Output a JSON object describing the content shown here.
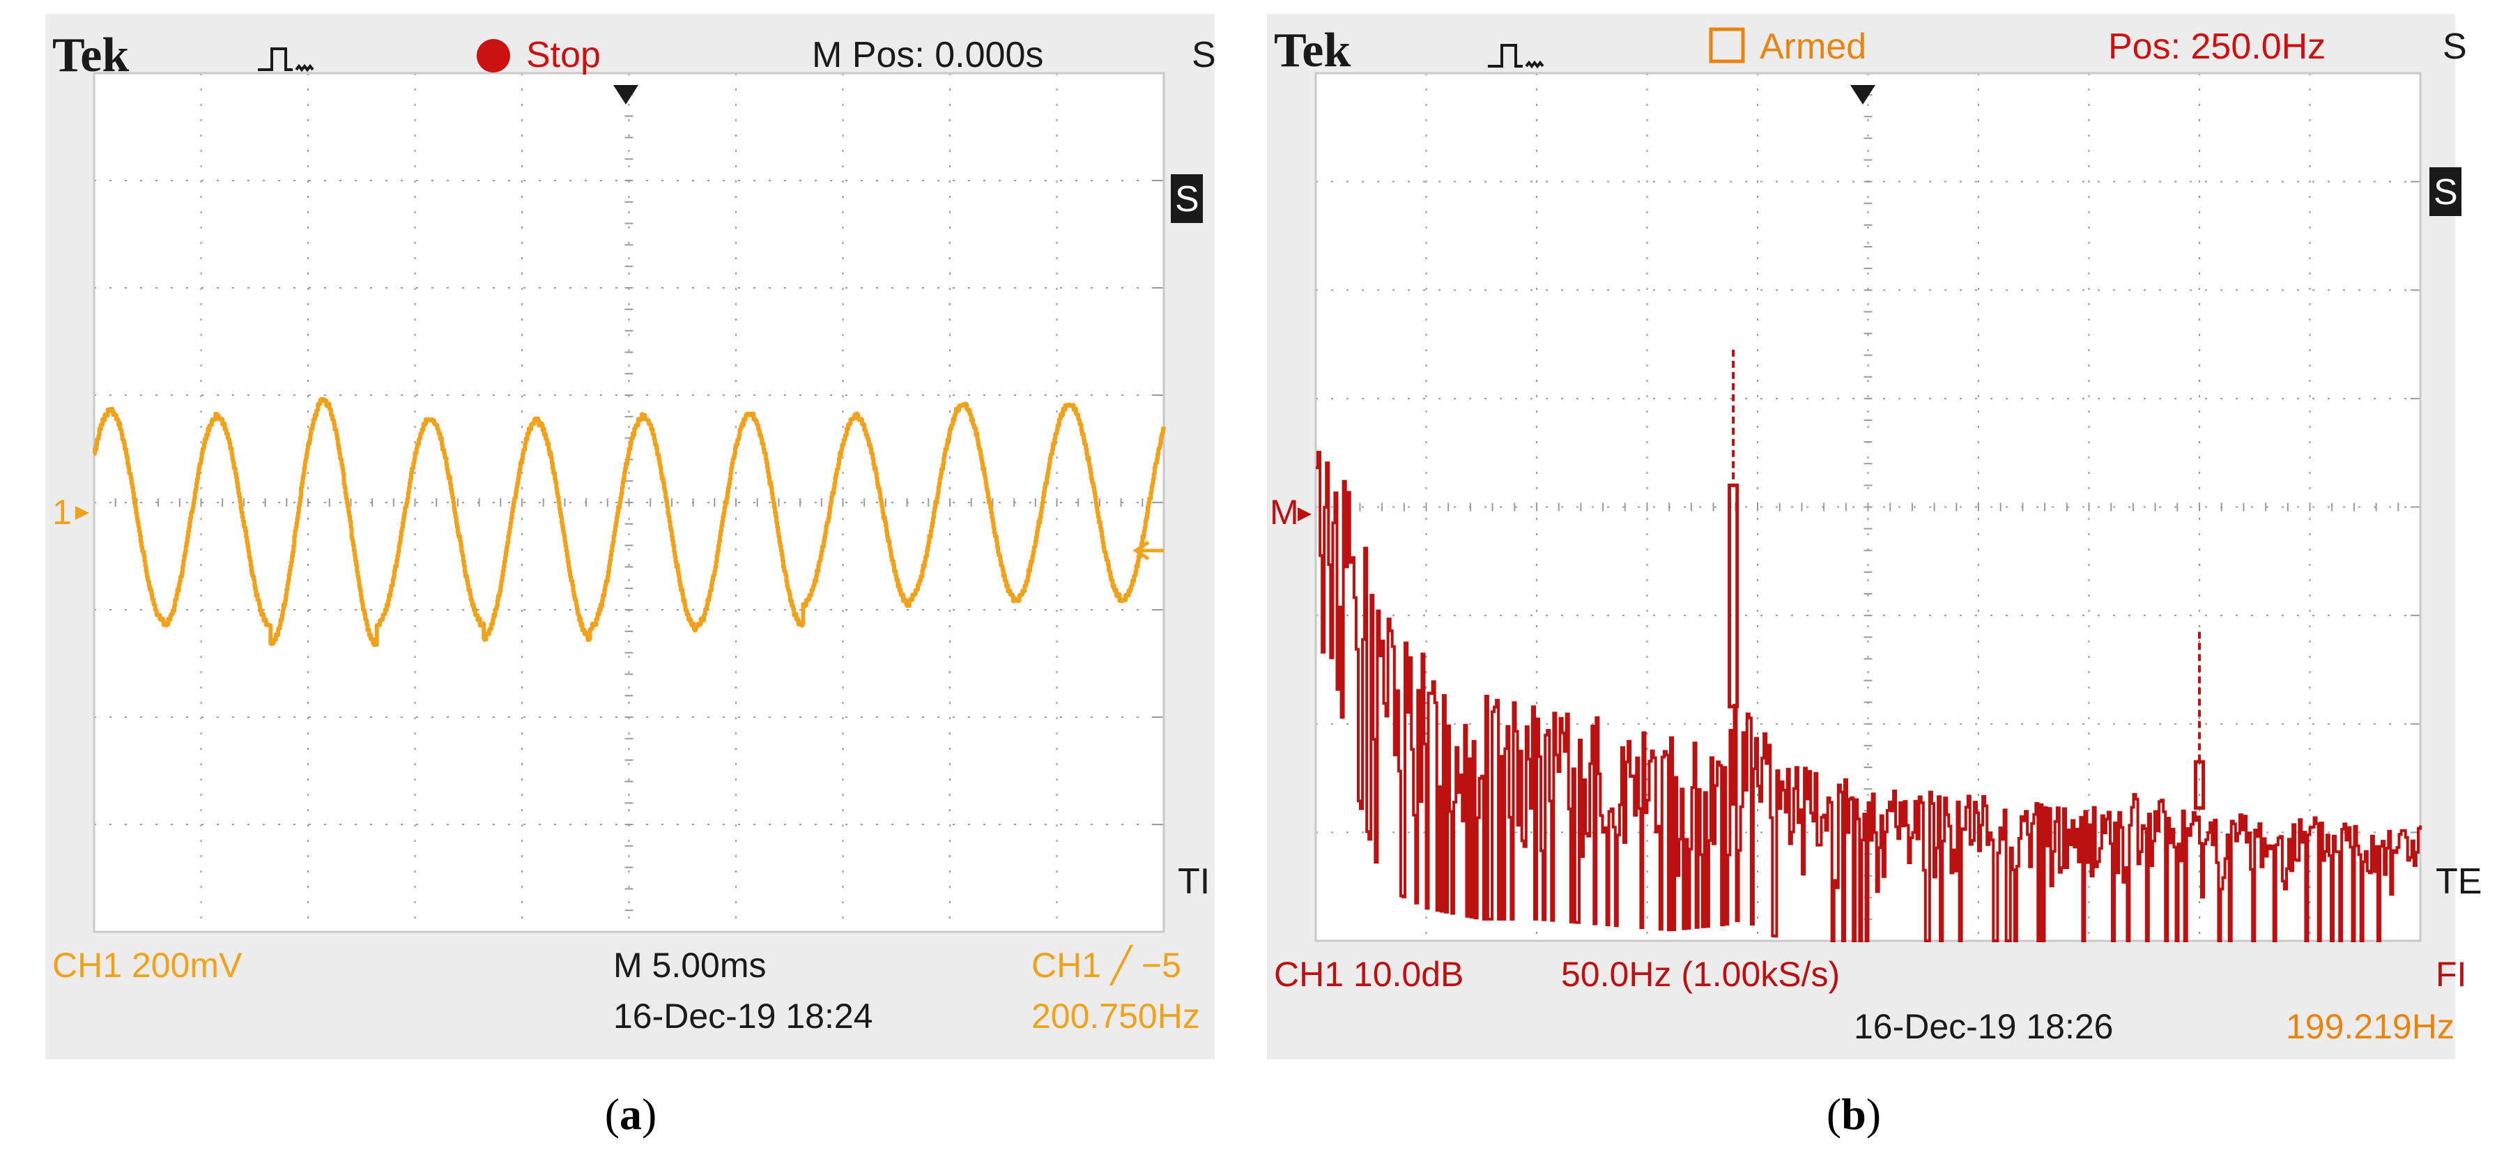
{
  "panels": {
    "a": {
      "brand": "Tek",
      "status_label": "Stop",
      "header_right": "M Pos: 0.000s",
      "edge_right_top": "S",
      "edge_menu_box": "S",
      "edge_right_bottom": "TI",
      "ch_marker": "1",
      "ch_scale": "CH1  200mV",
      "timebase": "M 5.00ms",
      "trigger": "CH1  ╱  −5",
      "datetime": "16-Dec-19 18:24",
      "freq": "200.750Hz",
      "caption_letter": "a",
      "colors": {
        "trace": "#f0a21c",
        "status": "#cc1111",
        "text": "#1a1a1a"
      }
    },
    "b": {
      "brand": "Tek",
      "status_label": "Armed",
      "header_right": "Pos: 250.0Hz",
      "edge_right_top": "S",
      "edge_menu_box": "S",
      "edge_right_bottom": "TE",
      "edge_right_bottom2": "FI",
      "ch_marker": "M",
      "ch_scale": "CH1 10.0dB",
      "span": "50.0Hz (1.00kS/s)",
      "datetime": "16-Dec-19 18:26",
      "freq": "199.219Hz",
      "caption_letter": "b",
      "colors": {
        "trace": "#bb1111",
        "status": "#e6850f",
        "text": "#1a1a1a"
      }
    }
  },
  "chart_data": [
    {
      "type": "line",
      "panel": "a",
      "description_of_signal": "sinusoid",
      "xlim": [
        0,
        10
      ],
      "ylim": [
        -4,
        4
      ],
      "grid": true,
      "period_divisions": 0.996,
      "peak_values": [
        0.85,
        0.8,
        0.95,
        0.78,
        0.76,
        0.8,
        0.82,
        0.8,
        0.91
      ],
      "trough_values": [
        -1.1,
        -1.15,
        -1.32,
        -1.13,
        -1.26,
        -1.17,
        -1.15,
        -0.95,
        -0.9
      ],
      "series": [
        {
          "values_note": "peak/trough amplitude per cycle (divisions from centre line)"
        }
      ]
    },
    {
      "type": "line",
      "panel": "b",
      "xlim": [
        0,
        10
      ],
      "ylim": [
        -4,
        4
      ],
      "grid": true,
      "envelope": {
        "x": [
          0.0,
          0.15,
          0.3,
          0.6,
          1.0,
          1.5,
          2.0,
          2.6,
          3.2,
          3.7,
          3.85,
          3.95,
          4.1,
          4.5,
          5.0,
          5.6,
          6.2,
          6.8,
          7.2,
          7.6,
          7.8,
          8.2,
          8.8,
          9.4,
          10.0
        ],
        "top": [
          0.6,
          0.6,
          0.2,
          -0.8,
          -1.4,
          -1.7,
          -1.85,
          -1.95,
          -2.1,
          -2.0,
          -1.7,
          -1.9,
          -2.1,
          -2.45,
          -2.55,
          -2.6,
          -2.65,
          -2.75,
          -2.7,
          -2.6,
          -2.75,
          -2.8,
          -2.85,
          -2.85,
          -2.9
        ],
        "bottom": [
          -0.9,
          -1.0,
          -2.0,
          -3.1,
          -3.3,
          -3.4,
          -3.4,
          -3.45,
          -3.5,
          -3.45,
          -3.4,
          -3.45,
          -3.55,
          -3.6,
          -3.6,
          -3.6,
          -3.6,
          -3.6,
          -3.6,
          -3.6,
          -3.6,
          -3.6,
          -3.6,
          -3.6,
          -3.6
        ]
      },
      "peaks": [
        {
          "x": 3.78,
          "top": 1.45,
          "solid_top": 0.2
        },
        {
          "x": 8.0,
          "top": -1.15,
          "solid_top": -2.35
        }
      ]
    }
  ]
}
